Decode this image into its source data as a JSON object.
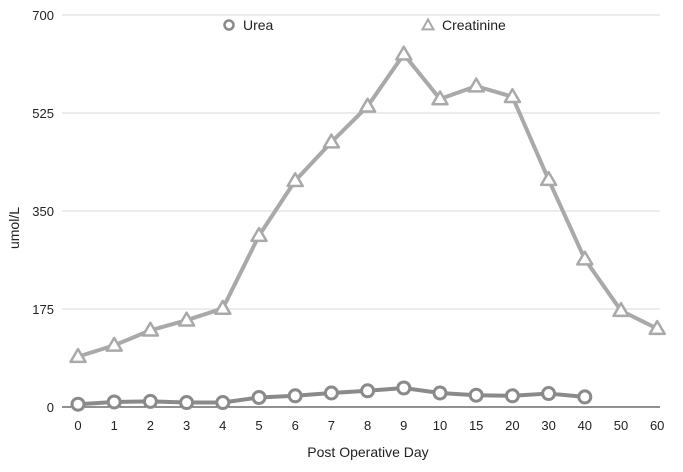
{
  "chart_data": {
    "type": "line",
    "categories": [
      "0",
      "1",
      "2",
      "3",
      "4",
      "5",
      "6",
      "7",
      "8",
      "9",
      "10",
      "15",
      "20",
      "30",
      "40",
      "50",
      "60"
    ],
    "xlabel": "Post Operative Day",
    "ylabel": "umol/L",
    "ylim": [
      0,
      700
    ],
    "yticks": [
      "0",
      "175",
      "350",
      "525",
      "700"
    ],
    "grid": true,
    "legend_position": "top",
    "series": [
      {
        "name": "Urea",
        "marker": "circle",
        "color": "#8a8a8a",
        "values": [
          5,
          9,
          10,
          8,
          8,
          17,
          20,
          25,
          29,
          34,
          25,
          21,
          20,
          24,
          18,
          null,
          null
        ]
      },
      {
        "name": "Creatinine",
        "marker": "triangle",
        "color": "#a9a9a9",
        "values": [
          90,
          110,
          137,
          155,
          176,
          306,
          404,
          473,
          537,
          630,
          550,
          573,
          554,
          406,
          264,
          172,
          140
        ]
      }
    ]
  }
}
